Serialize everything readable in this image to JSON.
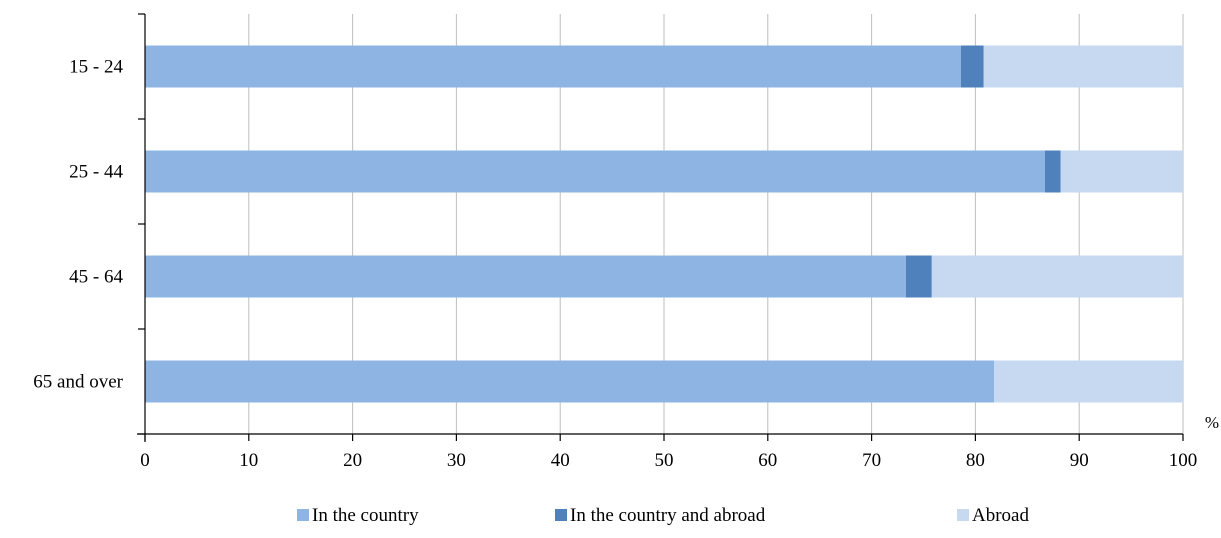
{
  "chart_data": {
    "type": "bar",
    "orientation": "horizontal",
    "stacked": true,
    "categories": [
      "15 - 24",
      "25 - 44",
      "45 - 64",
      "65 and over"
    ],
    "series": [
      {
        "name": "In the country",
        "color": "#8eb4e3",
        "values": [
          78.6,
          86.7,
          73.3,
          81.8
        ]
      },
      {
        "name": "In the country and abroad",
        "color": "#4f81bd",
        "values": [
          2.2,
          1.5,
          2.5,
          0
        ]
      },
      {
        "name": "Abroad",
        "color": "#c6d9f1",
        "values": [
          19.2,
          11.8,
          24.2,
          18.2
        ]
      }
    ],
    "xlabel": "%",
    "ylabel": "",
    "xlim": [
      0,
      100
    ],
    "xticks": [
      "0",
      "10",
      "20",
      "30",
      "40",
      "50",
      "60",
      "70",
      "80",
      "90",
      "100"
    ],
    "grid": true,
    "legend_position": "bottom"
  }
}
